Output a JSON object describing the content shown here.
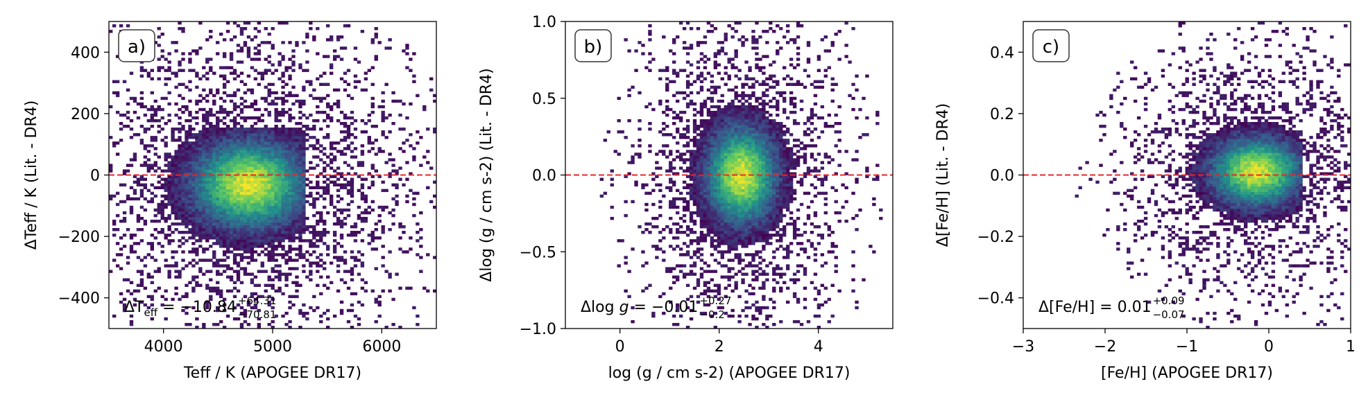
{
  "chart_data": [
    {
      "type": "heatmap",
      "panel_label": "a)",
      "xlabel": "Teff / K (APOGEE DR17)",
      "ylabel": "ΔTeff / K (Lit. - DR4)",
      "xlim": [
        3500,
        6500
      ],
      "ylim": [
        -500,
        500
      ],
      "xticks": [
        4000,
        5000,
        6000
      ],
      "xtick_labels": [
        "4000",
        "5000",
        "6000"
      ],
      "yticks": [
        -400,
        -200,
        0,
        200,
        400
      ],
      "ytick_labels": [
        "−400",
        "−200",
        "0",
        "200",
        "400"
      ],
      "reference_line": {
        "y": 0,
        "style": "dashed",
        "color": "#e8262a"
      },
      "annotation": {
        "lhs_main": "ΔT",
        "lhs_sub": "eff",
        "rhs": " = −10.84",
        "sup": "+64.31",
        "sub": "−70.81"
      },
      "density": {
        "x_center": 4780,
        "x_sigma": 330,
        "x_min": 3700,
        "x_max": 5300,
        "y_center": -30,
        "y_sigma": 90,
        "y_min": -420,
        "y_max": 150
      },
      "grid": false
    },
    {
      "type": "heatmap",
      "panel_label": "b)",
      "xlabel": "log (g / cm s-2) (APOGEE DR17)",
      "ylabel": "Δlog (g / cm s-2) (Lit. - DR4)",
      "xlim": [
        -1.1,
        5.5
      ],
      "ylim": [
        -1.0,
        1.0
      ],
      "xticks": [
        0,
        2,
        4
      ],
      "xtick_labels": [
        "0",
        "2",
        "4"
      ],
      "yticks": [
        -1.0,
        -0.5,
        0.0,
        0.5,
        1.0
      ],
      "ytick_labels": [
        "−1.0",
        "−0.5",
        "0.0",
        "0.5",
        "1.0"
      ],
      "reference_line": {
        "y": 0,
        "style": "dashed",
        "color": "#e8262a"
      },
      "annotation": {
        "lhs_main": "Δlog ",
        "lhs_italic": "g",
        "rhs": " = −0.01",
        "sup": "+0.27",
        "sub": "−0.2"
      },
      "density": {
        "x_center": 2.45,
        "x_sigma": 0.45,
        "x_min": 0.8,
        "x_max": 3.9,
        "y_center": 0.0,
        "y_sigma": 0.2,
        "y_min": -0.75,
        "y_max": 1.0
      },
      "grid": false
    },
    {
      "type": "heatmap",
      "panel_label": "c)",
      "xlabel": "[Fe/H] (APOGEE DR17)",
      "ylabel": "Δ[Fe/H] (Lit. - DR4)",
      "xlim": [
        -3,
        1
      ],
      "ylim": [
        -0.5,
        0.5
      ],
      "xticks": [
        -3,
        -2,
        -1,
        0,
        1
      ],
      "xtick_labels": [
        "−3",
        "−2",
        "−1",
        "0",
        "1"
      ],
      "yticks": [
        -0.4,
        -0.2,
        0.0,
        0.2,
        0.4
      ],
      "ytick_labels": [
        "−0.4",
        "−0.2",
        "0.0",
        "0.2",
        "0.4"
      ],
      "reference_line": {
        "y": 0,
        "style": "dashed",
        "color": "#e8262a"
      },
      "annotation": {
        "lhs_main": "Δ[Fe/H]",
        "rhs": " = 0.01",
        "sup": "+0.09",
        "sub": "−0.07"
      },
      "density": {
        "x_center": -0.15,
        "x_sigma": 0.35,
        "x_min": -2.1,
        "x_max": 0.4,
        "y_center": 0.01,
        "y_sigma": 0.07,
        "y_min": -0.45,
        "y_max": 0.5
      },
      "grid": false
    }
  ],
  "colormap": "viridis",
  "colors": {
    "low": "#440154",
    "mid": "#21918c",
    "high": "#fde725",
    "reference_line": "#e8262a"
  }
}
